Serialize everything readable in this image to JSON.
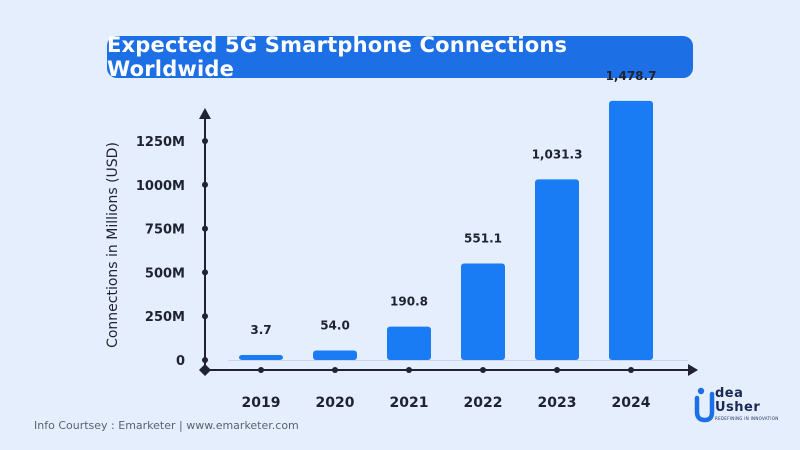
{
  "title": "Expected 5G Smartphone Connections Worldwide",
  "footer_note": "Info Courtsey : Emarketer | www.emarketer.com",
  "logo": {
    "line1": "dea",
    "line2": "Usher",
    "tagline": "REDEFINING IN INNOVATION"
  },
  "colors": {
    "background": "#e4eefc",
    "accent": "#1d6fe6",
    "bar": "#1a7cf5",
    "axis": "#1f2230"
  },
  "chart_data": {
    "type": "bar",
    "title": "Expected 5G Smartphone Connections Worldwide",
    "xlabel": "",
    "ylabel": "Connections in Millions (USD)",
    "categories": [
      "2019",
      "2020",
      "2021",
      "2022",
      "2023",
      "2024"
    ],
    "values": [
      3.7,
      54.0,
      190.8,
      551.1,
      1031.3,
      1478.7
    ],
    "data_labels": [
      "3.7",
      "54.0",
      "190.8",
      "551.1",
      "1,031.3",
      "1,478.7"
    ],
    "yticks": [
      0,
      250,
      500,
      750,
      1000,
      1250
    ],
    "ytick_labels": [
      "0",
      "250M",
      "500M",
      "750M",
      "1000M",
      "1250M"
    ],
    "ylim": [
      0,
      1375
    ],
    "grid": false,
    "legend": "none"
  }
}
